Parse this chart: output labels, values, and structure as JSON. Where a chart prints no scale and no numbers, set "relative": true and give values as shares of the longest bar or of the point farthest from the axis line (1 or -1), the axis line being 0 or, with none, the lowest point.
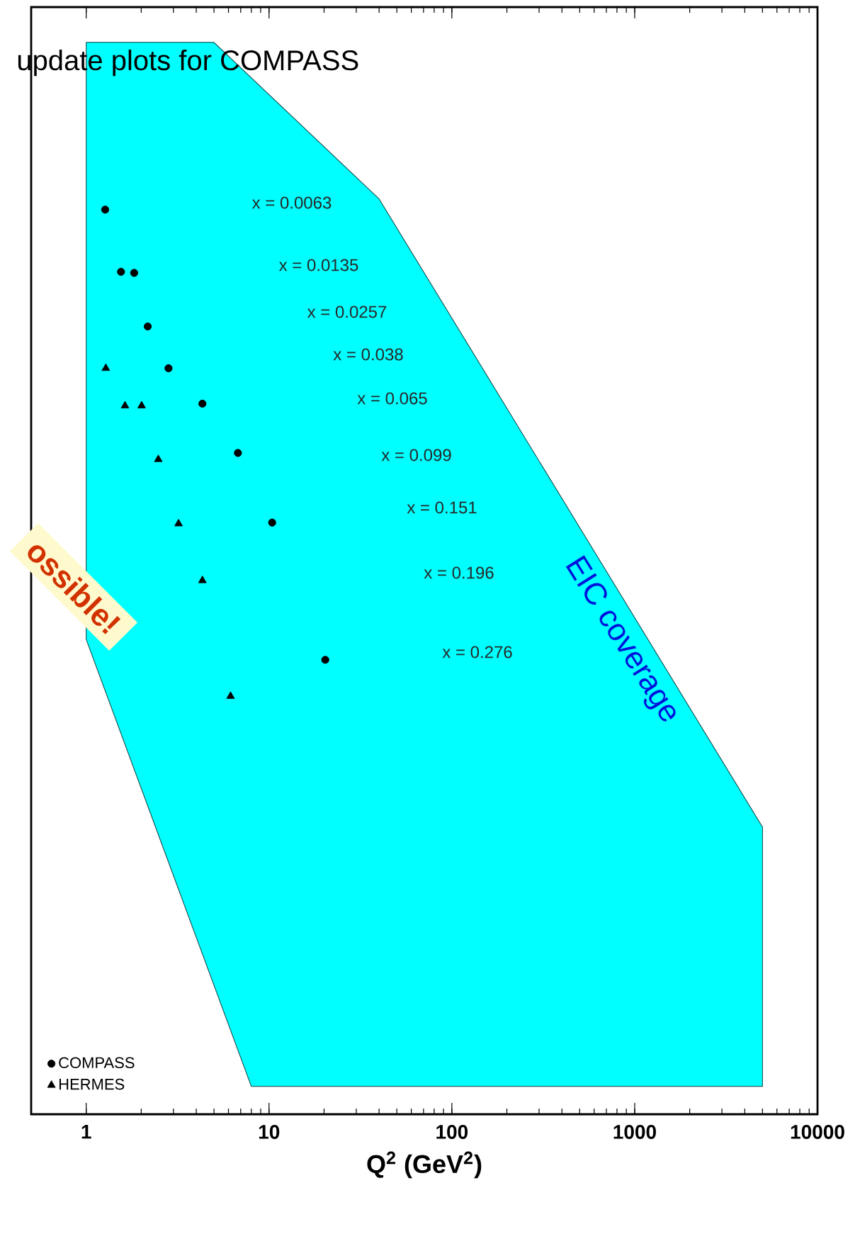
{
  "chart_data": {
    "type": "scatter",
    "title": "update plots for COMPASS",
    "xlabel": "Q$^{2}$ (GeV$^{2}$)",
    "log": "x",
    "relative": true,
    "xlim": [
      0.5,
      10000
    ],
    "xticks": [
      1,
      10,
      100,
      1000,
      10000
    ],
    "grid": false,
    "legend": "bottom left",
    "series": [
      {
        "name": "EIC coverage",
        "type": "area",
        "color": "#00ffff",
        "x": [
          1,
          5,
          40,
          5000,
          5000,
          8,
          1
        ],
        "values": [
          1,
          1,
          0.854,
          0.268,
          0.026,
          0.026,
          0.443
        ]
      },
      {
        "name": "COMPASS",
        "marker": "circle",
        "color": "#000000",
        "x": [
          1.27,
          1.55,
          1.83,
          2.17,
          2.82,
          4.32,
          6.76,
          10.4,
          20.3
        ],
        "values": [
          0.844,
          0.786,
          0.785,
          0.735,
          0.696,
          0.663,
          0.617,
          0.552,
          0.424
        ]
      },
      {
        "name": "HERMES",
        "marker": "triangle",
        "color": "#000000",
        "x": [
          1.28,
          1.63,
          2.01,
          2.48,
          3.2,
          4.32,
          6.16
        ],
        "values": [
          0.696,
          0.661,
          0.661,
          0.611,
          0.551,
          0.498,
          0.39
        ]
      }
    ],
    "annotations": [
      "x = 0.0063",
      "x = 0.0135",
      "x = 0.0257",
      "x = 0.038",
      "x = 0.065",
      "x = 0.099",
      "x = 0.151",
      "x = 0.196",
      "x = 0.276",
      "ossible!"
    ]
  }
}
